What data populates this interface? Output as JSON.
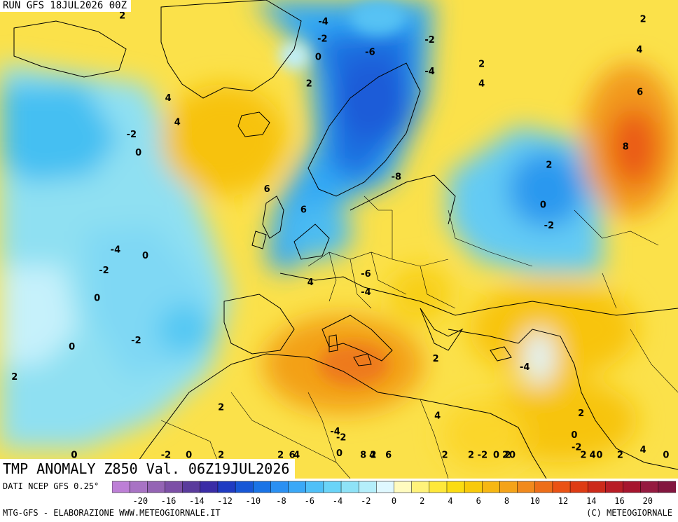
{
  "header": {
    "run_label": "RUN GFS 18JUL2026 00Z"
  },
  "title": "TMP ANOMALY Z850 Val. 06Z19JUL2026",
  "footer": {
    "source": "DATI NCEP GFS 0.25°",
    "credit": "MTG-GFS - ELABORAZIONE WWW.METEOGIORNALE.IT",
    "copyright": "(C) METEOGIORNALE"
  },
  "colorbar": {
    "colors": [
      "#bd7fd6",
      "#a873c4",
      "#9464b4",
      "#7c4fa6",
      "#5a3b9c",
      "#3a2ca6",
      "#1f3bc2",
      "#1757d6",
      "#1a74e6",
      "#2a90f2",
      "#3aa8f7",
      "#4fc0f8",
      "#6ad4f8",
      "#8ee2f7",
      "#b4eefa",
      "#dff8ff",
      "#fffbbf",
      "#fff27a",
      "#ffe83a",
      "#fbdc12",
      "#f8ca0a",
      "#f6b712",
      "#f4a319",
      "#f18a1d",
      "#ed6e19",
      "#ea5214",
      "#de3b14",
      "#cc2a1a",
      "#b81d26",
      "#a6152e",
      "#951a40",
      "#83163f"
    ],
    "ticks": [
      "-20",
      "-16",
      "-14",
      "-12",
      "-10",
      "-8",
      "-6",
      "-4",
      "-2",
      "0",
      "2",
      "4",
      "6",
      "8",
      "10",
      "12",
      "14",
      "16",
      "20"
    ]
  },
  "map_labels": [
    {
      "text": "2",
      "x": -40.5,
      "y": 84.8
    },
    {
      "text": "-4",
      "x": 3.3,
      "y": 84.3
    },
    {
      "text": "-2",
      "x": 3.1,
      "y": 82.9
    },
    {
      "text": "0",
      "x": 2.2,
      "y": 81.4
    },
    {
      "text": "2",
      "x": 0.2,
      "y": 79.2
    },
    {
      "text": "-6",
      "x": 13.5,
      "y": 81.8
    },
    {
      "text": "-2",
      "x": 26.5,
      "y": 82.8
    },
    {
      "text": "-4",
      "x": 26.5,
      "y": 80.2
    },
    {
      "text": "-8",
      "x": 19.2,
      "y": 71.5
    },
    {
      "text": "2",
      "x": 37.8,
      "y": 80.8
    },
    {
      "text": "4",
      "x": 37.8,
      "y": 79.2
    },
    {
      "text": "2",
      "x": 73.0,
      "y": 84.5
    },
    {
      "text": "4",
      "x": 72.2,
      "y": 82.0
    },
    {
      "text": "6",
      "x": 72.3,
      "y": 78.5
    },
    {
      "text": "8",
      "x": 69.2,
      "y": 74.0
    },
    {
      "text": "2",
      "x": 52.5,
      "y": 72.5
    },
    {
      "text": "0",
      "x": 51.2,
      "y": 69.2
    },
    {
      "text": "-2",
      "x": 52.5,
      "y": 67.5
    },
    {
      "text": "-4",
      "x": 47.2,
      "y": 55.8
    },
    {
      "text": "2",
      "x": 59.5,
      "y": 52.0
    },
    {
      "text": "0",
      "x": 58.0,
      "y": 50.2
    },
    {
      "text": "-2",
      "x": 58.5,
      "y": 49.2
    },
    {
      "text": "4",
      "x": 62.0,
      "y": 46.5
    },
    {
      "text": "-2",
      "x": 38.0,
      "y": 46.0
    },
    {
      "text": "0",
      "x": 41.0,
      "y": 43.2
    },
    {
      "text": "2",
      "x": 43.5,
      "y": 42.0
    },
    {
      "text": "0",
      "x": 44.5,
      "y": 40.2
    },
    {
      "text": "0",
      "x": 63.5,
      "y": 41.8
    },
    {
      "text": "2",
      "x": 60.0,
      "y": 31.0
    },
    {
      "text": "2",
      "x": 35.5,
      "y": 33.0
    },
    {
      "text": "4",
      "x": 28.2,
      "y": 51.8
    },
    {
      "text": "2",
      "x": 27.8,
      "y": 56.5
    },
    {
      "text": "-6",
      "x": 12.6,
      "y": 63.5
    },
    {
      "text": "-4",
      "x": 12.6,
      "y": 62.0
    },
    {
      "text": "-4",
      "x": 5.9,
      "y": 50.5
    },
    {
      "text": "-2",
      "x": 7.2,
      "y": 50.0
    },
    {
      "text": "0",
      "x": 6.8,
      "y": 48.7
    },
    {
      "text": "8",
      "x": 12.0,
      "y": 41.0
    },
    {
      "text": "6",
      "x": 17.5,
      "y": 32.5
    },
    {
      "text": "4",
      "x": 14.0,
      "y": 29.0
    },
    {
      "text": "2",
      "x": 14.2,
      "y": 27.5
    },
    {
      "text": "2",
      "x": -6.0,
      "y": 45.0
    },
    {
      "text": "4",
      "x": -2.5,
      "y": 43.0
    },
    {
      "text": "6",
      "x": -3.5,
      "y": 40.8
    },
    {
      "text": "4",
      "x": 0.5,
      "y": 62.8
    },
    {
      "text": "6",
      "x": -1.0,
      "y": 68.8
    },
    {
      "text": "6",
      "x": -9.0,
      "y": 70.5
    },
    {
      "text": "4",
      "x": -28.5,
      "y": 76.0
    },
    {
      "text": "4",
      "x": -30.5,
      "y": 78.0
    },
    {
      "text": "-2",
      "x": -38.5,
      "y": 75.0
    },
    {
      "text": "0",
      "x": -37.0,
      "y": 73.5
    },
    {
      "text": "-4",
      "x": -42.0,
      "y": 65.5
    },
    {
      "text": "-2",
      "x": -44.5,
      "y": 63.8
    },
    {
      "text": "0",
      "x": -35.5,
      "y": 65.0
    },
    {
      "text": "0",
      "x": -46.0,
      "y": 61.5
    },
    {
      "text": "0",
      "x": -51.5,
      "y": 57.5
    },
    {
      "text": "-2",
      "x": -37.5,
      "y": 58.0
    },
    {
      "text": "2",
      "x": -19.0,
      "y": 52.5
    },
    {
      "text": "-2",
      "x": -31.0,
      "y": 38.5
    },
    {
      "text": "0",
      "x": -26.0,
      "y": 34.0
    },
    {
      "text": "2",
      "x": -19.0,
      "y": 35.0
    },
    {
      "text": "0",
      "x": -51.0,
      "y": 31.5
    },
    {
      "text": "0",
      "x": -51.0,
      "y": 40.0
    },
    {
      "text": "2",
      "x": -64.0,
      "y": 55.0
    },
    {
      "text": "2",
      "x": 29.8,
      "y": 28.5
    },
    {
      "text": "2",
      "x": 68.0,
      "y": 30.5
    },
    {
      "text": "0",
      "x": 78.0,
      "y": 42.0
    },
    {
      "text": "4",
      "x": 73.0,
      "y": 49.0
    },
    {
      "text": "2",
      "x": 43.0,
      "y": 31.5
    }
  ]
}
